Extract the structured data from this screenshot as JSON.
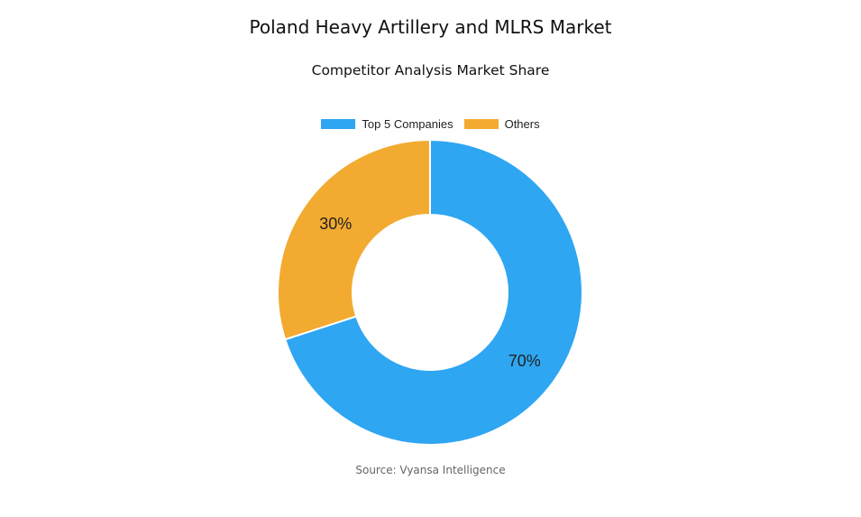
{
  "chart_data": {
    "type": "pie",
    "title": "Poland Heavy Artillery and MLRS Market",
    "subtitle": "Competitor Analysis Market Share",
    "legend_position": "top",
    "donut": true,
    "categories": [
      "Top 5 Companies",
      "Others"
    ],
    "values": [
      70,
      30
    ],
    "value_labels": [
      "70%",
      "30%"
    ],
    "colors": [
      "#2ea6f2",
      "#f2aa30"
    ]
  },
  "source": "Source: Vyansa Intelligence"
}
